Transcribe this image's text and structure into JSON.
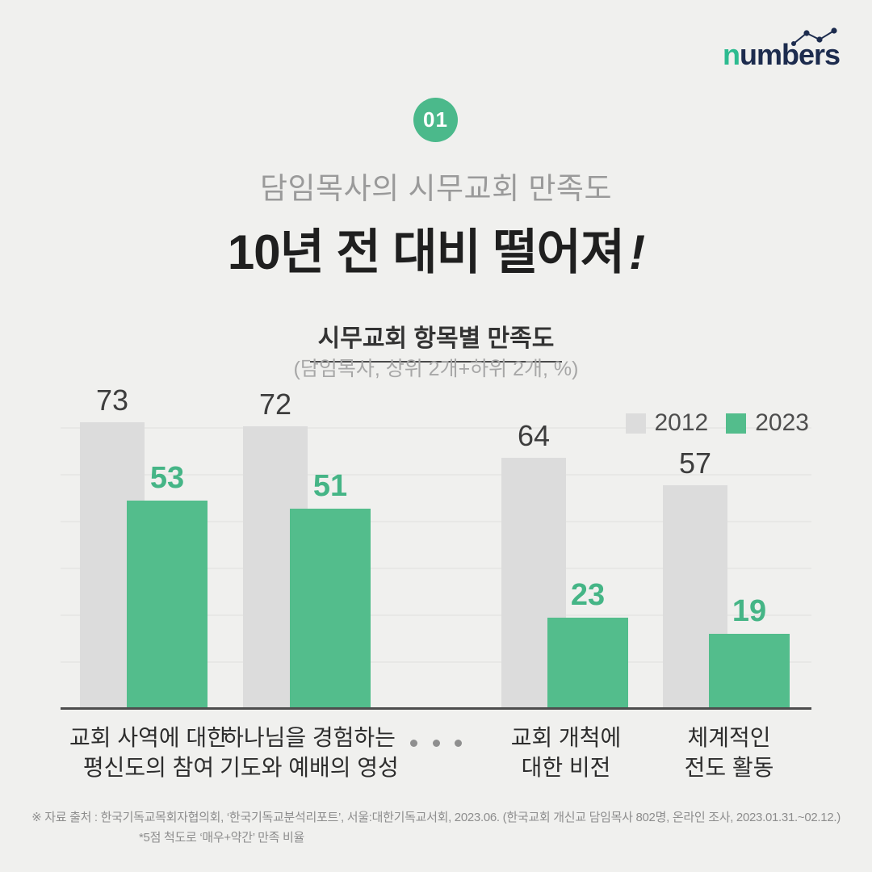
{
  "colors": {
    "background": "#f0f0ee",
    "bar_2012": "#dcdcdc",
    "bar_2023": "#53bd8c",
    "value_label_2012": "#3d3d3d",
    "value_label_2023": "#45b586",
    "badge_green": "#4bb98b",
    "logo_navy": "#1d2c4e",
    "logo_green": "#2dbb90",
    "baseline": "#4d4d4d"
  },
  "logo": {
    "prefix": "n",
    "rest": "umbers"
  },
  "badge": {
    "label": "01"
  },
  "header": {
    "subtitle": "담임목사의 시무교회 만족도",
    "title": "10년 전 대비 떨어져",
    "title_exclaim": "!"
  },
  "chart_data": {
    "type": "bar",
    "title": "시무교회 항목별 만족도",
    "subtitle": "(담임목사, 상위 2개+하위 2개, %)",
    "unit": "%",
    "categories": [
      "교회 사역에 대한\n평신도의 참여",
      "하나님을 경험하는\n기도와 예배의 영성",
      "교회 개척에\n대한 비전",
      "체계적인\n전도 활동"
    ],
    "series": [
      {
        "name": "2012",
        "color": "#dcdcdc",
        "values": [
          73,
          72,
          64,
          57
        ]
      },
      {
        "name": "2023",
        "color": "#53bd8c",
        "values": [
          53,
          51,
          23,
          19
        ]
      }
    ],
    "ylim": [
      0,
      80
    ],
    "grid": "faint-horizontal",
    "legend_position": "top-right",
    "ellipsis_separator": "between category 2 and 3"
  },
  "footer": {
    "source": "※ 자료 출처 : 한국기독교목회자협의회, ‘한국기독교분석리포트’, 서울:대한기독교서회, 2023.06. (한국교회 개신교 담임목사 802명, 온라인 조사, 2023.01.31.~02.12.)",
    "note": "*5점 척도로 ‘매우+약간’ 만족 비율"
  }
}
